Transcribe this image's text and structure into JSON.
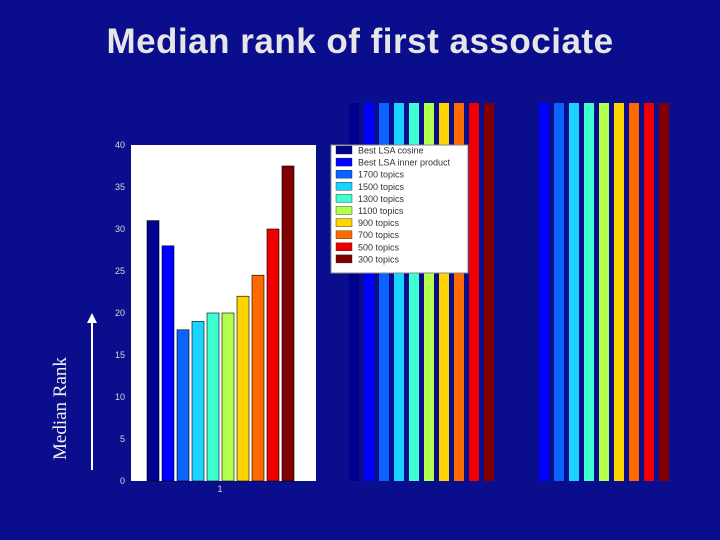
{
  "slide": {
    "title": "Median rank of first associate",
    "side_label": "Median Rank"
  },
  "chart_data": {
    "type": "bar",
    "title": "",
    "xlabel": "",
    "ylabel": "",
    "categories": [
      "1"
    ],
    "ylim": [
      0,
      40
    ],
    "yticks": [
      0,
      5,
      10,
      15,
      20,
      25,
      30,
      35,
      40
    ],
    "grid": false,
    "legend_position": "top-right",
    "series": [
      {
        "name": "Best LSA cosine",
        "values": [
          31
        ],
        "color": "#00008f"
      },
      {
        "name": "Best LSA inner product",
        "values": [
          28
        ],
        "color": "#0000ff"
      },
      {
        "name": "1700 topics",
        "values": [
          18
        ],
        "color": "#0a62ff"
      },
      {
        "name": "1500 topics",
        "values": [
          19
        ],
        "color": "#1ad4ff"
      },
      {
        "name": "1300 topics",
        "values": [
          20
        ],
        "color": "#3dffd0"
      },
      {
        "name": "1100 topics",
        "values": [
          20
        ],
        "color": "#b2ff4d"
      },
      {
        "name": "900 topics",
        "values": [
          22
        ],
        "color": "#ffd500"
      },
      {
        "name": "700 topics",
        "values": [
          24.5
        ],
        "color": "#ff6a00"
      },
      {
        "name": "500 topics",
        "values": [
          30
        ],
        "color": "#ee0000"
      },
      {
        "name": "300 topics",
        "values": [
          37.5
        ],
        "color": "#800000"
      }
    ]
  }
}
